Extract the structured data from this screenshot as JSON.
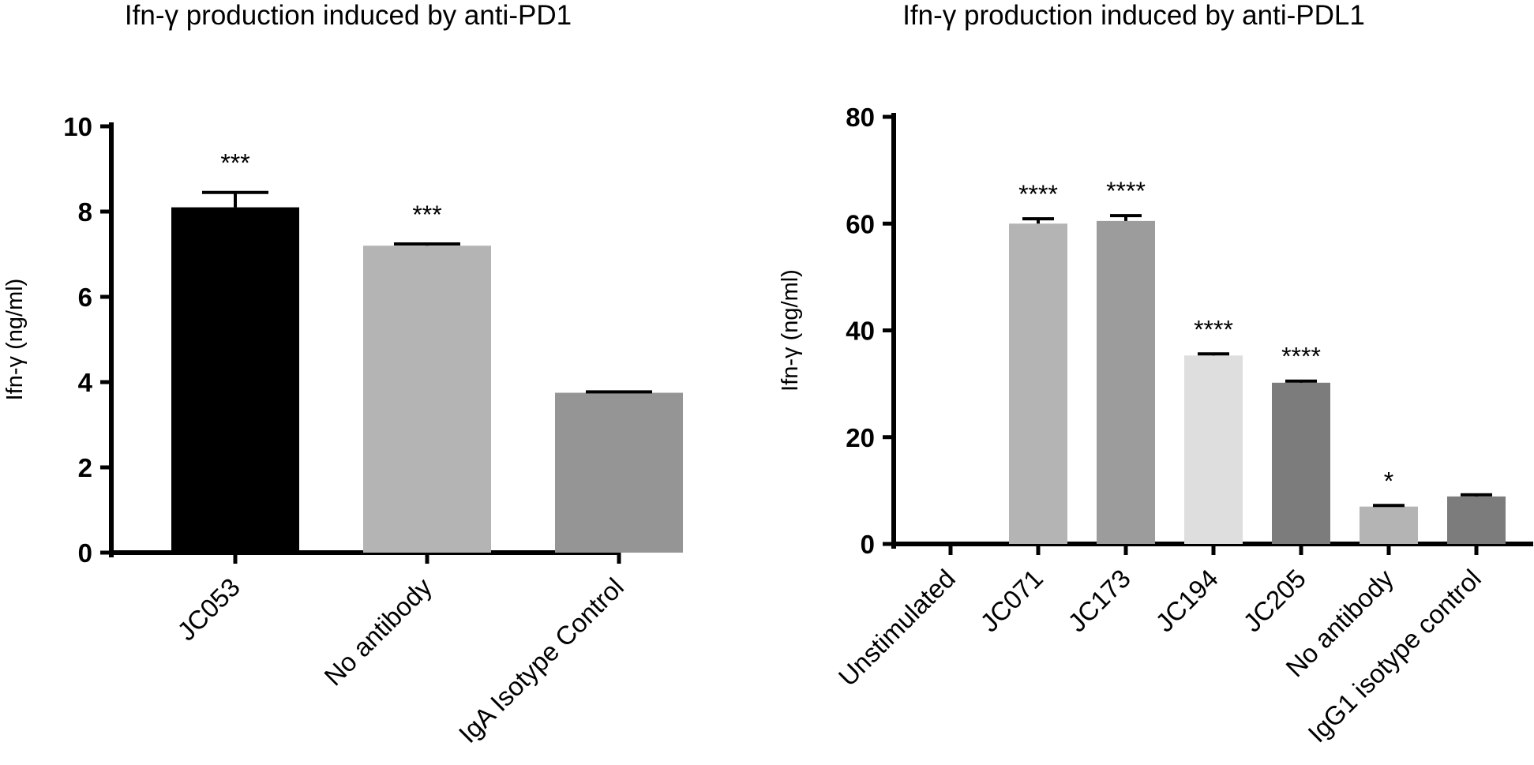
{
  "chart_data": [
    {
      "type": "bar",
      "title": "Ifn-γ production induced by anti-PD1",
      "ylabel": "Ifn-γ (ng/ml)",
      "xlabel": "",
      "ylim": [
        0,
        10
      ],
      "yticks": [
        0,
        2,
        4,
        6,
        8,
        10
      ],
      "grid": false,
      "categories": [
        "JC053",
        "No antibody",
        "IgA Isotype Control"
      ],
      "values": [
        8.1,
        7.2,
        3.75
      ],
      "errors": [
        0.35,
        0.04,
        0.02
      ],
      "significance": [
        "***",
        "***",
        ""
      ],
      "colors": [
        "#000000",
        "#b4b4b4",
        "#959595"
      ]
    },
    {
      "type": "bar",
      "title": "Ifn-γ production induced by anti-PDL1",
      "ylabel": "Ifn-γ (ng/ml)",
      "xlabel": "",
      "ylim": [
        0,
        80
      ],
      "yticks": [
        0,
        20,
        40,
        60,
        80
      ],
      "grid": false,
      "categories": [
        "Unstimulated",
        "JC071",
        "JC173",
        "JC194",
        "JC205",
        "No antibody",
        "IgG1 isotype control"
      ],
      "values": [
        0,
        60,
        60.5,
        35.3,
        30.2,
        7.0,
        8.9
      ],
      "errors": [
        0,
        0.9,
        1.0,
        0.3,
        0.3,
        0.2,
        0.3
      ],
      "significance": [
        "",
        "****",
        "****",
        "****",
        "****",
        "*",
        ""
      ],
      "colors": [
        "#b4b4b4",
        "#b4b4b4",
        "#9c9c9c",
        "#dedede",
        "#7c7c7c",
        "#b4b4b4",
        "#7c7c7c"
      ]
    }
  ]
}
